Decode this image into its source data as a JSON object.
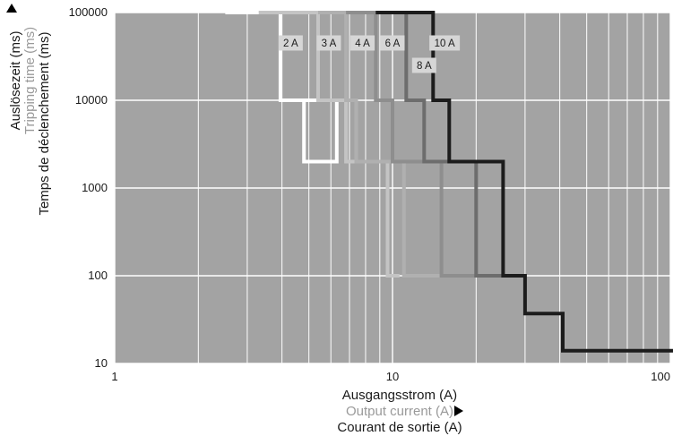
{
  "chart_data": {
    "type": "line",
    "x_scale": "log",
    "y_scale": "log",
    "xlim": [
      1,
      100
    ],
    "ylim": [
      10,
      100000
    ],
    "grid": true,
    "background_color": "#a3a3a3",
    "grid_color": "#ffffff",
    "x_ticks": [
      "1",
      "10",
      "100"
    ],
    "y_ticks": [
      "100000",
      "10000",
      "1000",
      "100",
      "10"
    ],
    "xlabel": [
      "Ausgangsstrom (A)",
      "Output current (A)",
      "Courant de sortie (A)"
    ],
    "ylabel": [
      "Auslösezeit (ms)",
      "Tripping time (ms)",
      "Temps de déclenchement (ms)"
    ],
    "series": [
      {
        "name": "2 A",
        "color": "#ffffff",
        "points": [
          [
            2.5,
            100000
          ],
          [
            3.3,
            100000
          ],
          [
            3.95,
            100000
          ],
          [
            3.95,
            10000
          ],
          [
            4.8,
            10000
          ],
          [
            4.8,
            2000
          ],
          [
            6.3,
            2000
          ],
          [
            6.3,
            10000
          ],
          [
            3.95,
            10000
          ]
        ]
      },
      {
        "name": "3 A",
        "color": "#c4c4c4",
        "points": [
          [
            3.3,
            100000
          ],
          [
            5.4,
            100000
          ],
          [
            5.4,
            10000
          ],
          [
            6.8,
            10000
          ],
          [
            6.8,
            2000
          ],
          [
            9.6,
            2000
          ],
          [
            9.6,
            100
          ],
          [
            10.6,
            100
          ]
        ]
      },
      {
        "name": "4 A",
        "color": "#b0b0b0",
        "points": [
          [
            5.4,
            100000
          ],
          [
            6.8,
            100000
          ],
          [
            6.8,
            10000
          ],
          [
            7.4,
            10000
          ],
          [
            7.4,
            2000
          ],
          [
            11,
            2000
          ],
          [
            11,
            100
          ],
          [
            15,
            100
          ]
        ]
      },
      {
        "name": "6 A",
        "color": "#8e8e8e",
        "points": [
          [
            6.8,
            100000
          ],
          [
            8.7,
            100000
          ],
          [
            8.7,
            10000
          ],
          [
            10,
            10000
          ],
          [
            10,
            2000
          ],
          [
            15,
            2000
          ],
          [
            15,
            100
          ],
          [
            20,
            100
          ]
        ]
      },
      {
        "name": "8 A",
        "color": "#6d6d6d",
        "points": [
          [
            8.7,
            100000
          ],
          [
            11.2,
            100000
          ],
          [
            11.2,
            10000
          ],
          [
            13,
            10000
          ],
          [
            13,
            2000
          ],
          [
            20,
            2000
          ],
          [
            20,
            100
          ],
          [
            25,
            100
          ]
        ]
      },
      {
        "name": "10 A",
        "color": "#1c1c1c",
        "points": [
          [
            8.7,
            100000
          ],
          [
            14,
            100000
          ],
          [
            14,
            10000
          ],
          [
            16,
            10000
          ],
          [
            16,
            2000
          ],
          [
            25,
            2000
          ],
          [
            25,
            100
          ],
          [
            30,
            100
          ],
          [
            30,
            37
          ],
          [
            41,
            37
          ],
          [
            41,
            14
          ],
          [
            105,
            14
          ]
        ]
      }
    ],
    "annotations": [
      {
        "text": "2 A",
        "x": 4.3,
        "y": 45000
      },
      {
        "text": "3 A",
        "x": 5.9,
        "y": 45000
      },
      {
        "text": "4 A",
        "x": 7.8,
        "y": 45000
      },
      {
        "text": "6 A",
        "x": 10.0,
        "y": 45000
      },
      {
        "text": "10 A",
        "x": 15.4,
        "y": 45000
      },
      {
        "text": "8 A",
        "x": 13.0,
        "y": 25000
      }
    ]
  }
}
